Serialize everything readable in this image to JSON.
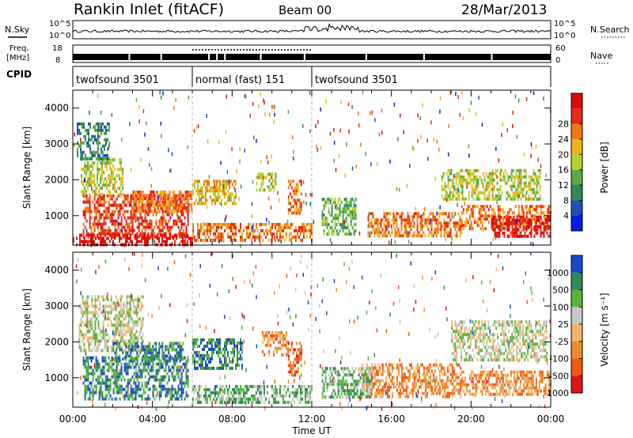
{
  "header": {
    "site": "Rankin Inlet (fitACF)",
    "beam": "Beam 00",
    "date": "28/Mar/2013"
  },
  "strip": {
    "nsky_label": "N.Sky",
    "nsearch_label": "N.Search",
    "freq_label_1": "Freq.",
    "freq_label_2": "[MHz]",
    "nave_label": "Nave",
    "cpid_label": "CPID",
    "nsky_ticks": [
      "10^5",
      "10^0"
    ],
    "nsearch_ticks": [
      "10^5",
      "10^0"
    ],
    "freq_ticks": [
      "18",
      "8"
    ],
    "nave_ticks": [
      "60",
      "0"
    ],
    "cpid_segments": [
      {
        "label": "twofsound 3501",
        "start": 0,
        "end": 6
      },
      {
        "label": "normal (fast) 151",
        "start": 6,
        "end": 12
      },
      {
        "label": "twofsound 3501",
        "start": 12,
        "end": 24
      }
    ]
  },
  "xaxis": {
    "label": "Time UT",
    "ticks": [
      "00:00",
      "04:00",
      "08:00",
      "12:00",
      "16:00",
      "20:00",
      "00:00"
    ]
  },
  "chart_data": [
    {
      "type": "heatmap",
      "quantity": "Power",
      "ylabel": "Slant Range [km]",
      "yticks": [
        "1000",
        "2000",
        "3000",
        "4000"
      ],
      "ylim": [
        180,
        4500
      ],
      "xlim": [
        0,
        24
      ],
      "colorbar_label": "Power [dB]",
      "colorbar_ticks": [
        "4",
        "8",
        "12",
        "16",
        "20",
        "24",
        "28"
      ],
      "colorbar_colors": [
        "#0a1ee0",
        "#1e50b4",
        "#2e8b57",
        "#5aa846",
        "#b4d22a",
        "#f0b21e",
        "#f07814",
        "#e82a14",
        "#e00a0a"
      ],
      "regions": [
        {
          "t0": 0.5,
          "t1": 5.8,
          "r0": 400,
          "r1": 1600,
          "level": 7
        },
        {
          "t0": 0.4,
          "t1": 2.5,
          "r0": 1600,
          "r1": 2600,
          "level": 4
        },
        {
          "t0": 0.2,
          "t1": 1.8,
          "r0": 2600,
          "r1": 3600,
          "level": 2
        },
        {
          "t0": 3.0,
          "t1": 6.0,
          "r0": 1100,
          "r1": 1700,
          "level": 6
        },
        {
          "t0": 6.0,
          "t1": 8.2,
          "r0": 1300,
          "r1": 2000,
          "level": 5
        },
        {
          "t0": 6.0,
          "t1": 12.0,
          "r0": 300,
          "r1": 800,
          "level": 6
        },
        {
          "t0": 9.2,
          "t1": 10.2,
          "r0": 1700,
          "r1": 2200,
          "level": 4
        },
        {
          "t0": 10.8,
          "t1": 11.5,
          "r0": 1100,
          "r1": 2000,
          "level": 6
        },
        {
          "t0": 12.5,
          "t1": 14.2,
          "r0": 500,
          "r1": 1500,
          "level": 3
        },
        {
          "t0": 14.8,
          "t1": 19.5,
          "r0": 400,
          "r1": 1100,
          "level": 6
        },
        {
          "t0": 19.5,
          "t1": 24.0,
          "r0": 600,
          "r1": 1300,
          "level": 6
        },
        {
          "t0": 18.5,
          "t1": 23.5,
          "r0": 1500,
          "r1": 2300,
          "level": 4
        },
        {
          "t0": 21.0,
          "t1": 24.0,
          "r0": 400,
          "r1": 1000,
          "level": 8
        },
        {
          "t0": 0.0,
          "t1": 6.0,
          "r0": 180,
          "r1": 500,
          "level": 8
        }
      ]
    },
    {
      "type": "heatmap",
      "quantity": "Velocity",
      "ylabel": "Slant Range [km]",
      "yticks": [
        "1000",
        "2000",
        "3000",
        "4000"
      ],
      "ylim": [
        180,
        4500
      ],
      "xlim": [
        0,
        24
      ],
      "colorbar_label": "Velocity [m s⁻¹]",
      "colorbar_ticks": [
        "1000",
        "500",
        "100",
        "25",
        "-25",
        "-100",
        "-500",
        "-1000"
      ],
      "colorbar_colors": [
        "#1e46c8",
        "#2e8b57",
        "#5ab43c",
        "#c8c8c8",
        "#f0b46e",
        "#f08c28",
        "#f05a14",
        "#e01414"
      ],
      "regions": [
        {
          "t0": 0.5,
          "t1": 5.8,
          "r0": 400,
          "r1": 1600,
          "level": 1
        },
        {
          "t0": 0.3,
          "t1": 3.5,
          "r0": 1800,
          "r1": 3300,
          "level": 3
        },
        {
          "t0": 2.0,
          "t1": 5.5,
          "r0": 1500,
          "r1": 2000,
          "level": 1
        },
        {
          "t0": 6.0,
          "t1": 8.5,
          "r0": 1300,
          "r1": 2100,
          "level": 1
        },
        {
          "t0": 9.5,
          "t1": 10.8,
          "r0": 1600,
          "r1": 2300,
          "level": 5
        },
        {
          "t0": 10.8,
          "t1": 11.5,
          "r0": 1100,
          "r1": 2000,
          "level": 6
        },
        {
          "t0": 6.0,
          "t1": 12.0,
          "r0": 300,
          "r1": 800,
          "level": 2
        },
        {
          "t0": 14.5,
          "t1": 19.5,
          "r0": 500,
          "r1": 1400,
          "level": 5
        },
        {
          "t0": 19.5,
          "t1": 24.0,
          "r0": 500,
          "r1": 1200,
          "level": 5
        },
        {
          "t0": 19.0,
          "t1": 23.8,
          "r0": 1500,
          "r1": 2600,
          "level": 3
        },
        {
          "t0": 12.5,
          "t1": 15.0,
          "r0": 500,
          "r1": 1300,
          "level": 2
        }
      ]
    }
  ]
}
